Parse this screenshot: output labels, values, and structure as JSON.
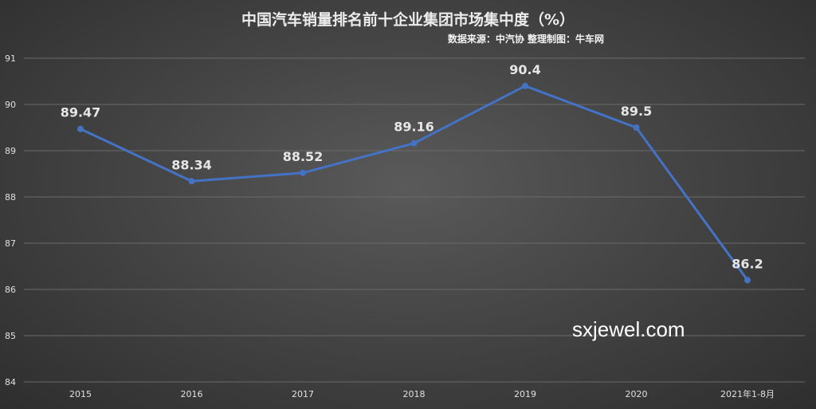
{
  "title": "中国汽车销量排名前十企业集团市场集中度（%）",
  "source": "数据来源：中汽协  整理制图：牛车网",
  "watermark_text": "sxjewel.com",
  "chart_data": {
    "type": "line",
    "title": "中国汽车销量排名前十企业集团市场集中度（%）",
    "categories": [
      "2015",
      "2016",
      "2017",
      "2018",
      "2019",
      "2020",
      "2021年1-8月"
    ],
    "series": [
      {
        "values": [
          89.47,
          88.34,
          88.52,
          89.16,
          90.4,
          89.5,
          86.2
        ]
      }
    ],
    "data_labels": [
      "89.47",
      "88.34",
      "88.52",
      "89.16",
      "90.4",
      "89.5",
      "86.2"
    ],
    "yticks": [
      84,
      85,
      86,
      87,
      88,
      89,
      90,
      91
    ],
    "ylim": [
      84,
      91
    ],
    "grid": true,
    "legend": "none",
    "line_color": "#4472c4",
    "label_color": "#e6e6e6"
  }
}
